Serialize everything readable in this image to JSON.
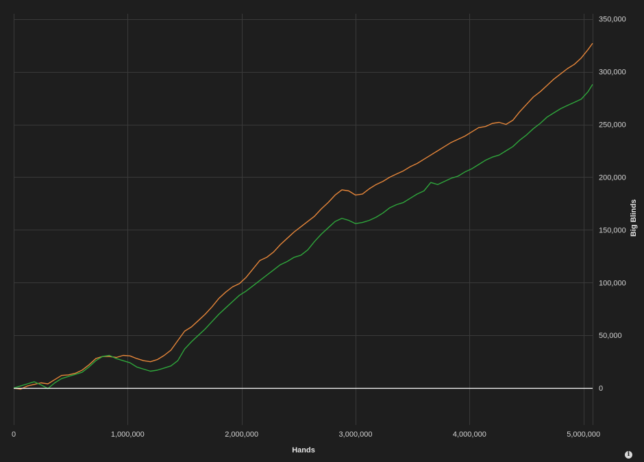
{
  "chart_data": {
    "type": "line",
    "xlabel": "Hands",
    "ylabel": "Big Blinds",
    "xlim": [
      0,
      5080000
    ],
    "ylim": [
      -35000,
      355000
    ],
    "x_ticks": [
      0,
      1000000,
      2000000,
      3000000,
      4000000,
      5000000
    ],
    "x_tick_labels": [
      "0",
      "1,000,000",
      "2,000,000",
      "3,000,000",
      "4,000,000",
      "5,000,000"
    ],
    "y_ticks": [
      0,
      50000,
      100000,
      150000,
      200000,
      250000,
      300000,
      350000
    ],
    "y_tick_labels": [
      "0",
      "50,000",
      "100,000",
      "150,000",
      "200,000",
      "250,000",
      "300,000",
      "350,000"
    ],
    "y_axis_side": "right",
    "grid": true,
    "zero_line_color": "#ffffff",
    "series": [
      {
        "color": "#e8873a",
        "x": [
          0,
          60000,
          120000,
          180000,
          240000,
          300000,
          360000,
          420000,
          480000,
          540000,
          600000,
          660000,
          720000,
          780000,
          840000,
          900000,
          960000,
          1020000,
          1080000,
          1140000,
          1200000,
          1260000,
          1320000,
          1380000,
          1440000,
          1500000,
          1560000,
          1620000,
          1680000,
          1740000,
          1800000,
          1860000,
          1920000,
          1980000,
          2040000,
          2100000,
          2160000,
          2220000,
          2280000,
          2340000,
          2400000,
          2460000,
          2520000,
          2580000,
          2640000,
          2700000,
          2760000,
          2820000,
          2880000,
          2940000,
          3000000,
          3060000,
          3120000,
          3180000,
          3240000,
          3300000,
          3360000,
          3420000,
          3480000,
          3540000,
          3600000,
          3660000,
          3720000,
          3780000,
          3840000,
          3900000,
          3960000,
          4020000,
          4080000,
          4140000,
          4200000,
          4260000,
          4320000,
          4380000,
          4440000,
          4500000,
          4560000,
          4620000,
          4680000,
          4740000,
          4800000,
          4860000,
          4920000,
          4980000,
          5040000,
          5080000
        ],
        "y": [
          0,
          -1000,
          2000,
          3500,
          5000,
          4000,
          8000,
          12000,
          12500,
          14000,
          17000,
          22000,
          28000,
          30000,
          30000,
          29000,
          31000,
          30500,
          28000,
          26000,
          25000,
          27000,
          31000,
          36000,
          45000,
          54000,
          58000,
          64000,
          70000,
          77000,
          85000,
          91000,
          96000,
          99000,
          105000,
          113000,
          121000,
          124000,
          129000,
          136000,
          142000,
          148000,
          153000,
          158000,
          163000,
          170000,
          176000,
          183000,
          188000,
          187000,
          183000,
          184000,
          189000,
          193000,
          196000,
          200000,
          203000,
          206000,
          210000,
          213000,
          217000,
          221000,
          225000,
          229000,
          233000,
          236000,
          239000,
          243000,
          247000,
          248000,
          251000,
          252000,
          250000,
          254000,
          262000,
          269000,
          276000,
          281000,
          287000,
          293000,
          298000,
          303000,
          307000,
          313000,
          321000,
          327000
        ]
      },
      {
        "color": "#2fa83c",
        "x": [
          0,
          60000,
          120000,
          180000,
          240000,
          300000,
          360000,
          420000,
          480000,
          540000,
          600000,
          660000,
          720000,
          780000,
          840000,
          900000,
          960000,
          1020000,
          1080000,
          1140000,
          1200000,
          1260000,
          1320000,
          1380000,
          1440000,
          1500000,
          1560000,
          1620000,
          1680000,
          1740000,
          1800000,
          1860000,
          1920000,
          1980000,
          2040000,
          2100000,
          2160000,
          2220000,
          2280000,
          2340000,
          2400000,
          2460000,
          2520000,
          2580000,
          2640000,
          2700000,
          2760000,
          2820000,
          2880000,
          2940000,
          3000000,
          3060000,
          3120000,
          3180000,
          3240000,
          3300000,
          3360000,
          3420000,
          3480000,
          3540000,
          3600000,
          3660000,
          3720000,
          3780000,
          3840000,
          3900000,
          3960000,
          4020000,
          4080000,
          4140000,
          4200000,
          4260000,
          4320000,
          4380000,
          4440000,
          4500000,
          4560000,
          4620000,
          4680000,
          4740000,
          4800000,
          4860000,
          4920000,
          4980000,
          5040000,
          5080000
        ],
        "y": [
          0,
          2000,
          4000,
          6000,
          3000,
          -500,
          5000,
          9000,
          11000,
          13000,
          15000,
          20000,
          26000,
          30000,
          31000,
          28000,
          26000,
          24000,
          20000,
          18000,
          16000,
          17000,
          19000,
          21000,
          26000,
          37000,
          44000,
          50000,
          56000,
          63000,
          70000,
          76000,
          82000,
          88000,
          92000,
          97000,
          102000,
          107000,
          112000,
          117000,
          120000,
          124000,
          126000,
          131000,
          139000,
          146000,
          152000,
          158000,
          161000,
          159000,
          156000,
          157000,
          159000,
          162000,
          166000,
          171000,
          174000,
          176000,
          180000,
          184000,
          187000,
          195000,
          193000,
          196000,
          199000,
          201000,
          205000,
          208000,
          212000,
          216000,
          219000,
          221000,
          225000,
          229000,
          235000,
          240000,
          246000,
          251000,
          257000,
          261000,
          265000,
          268000,
          271000,
          274000,
          281000,
          288000
        ]
      }
    ]
  },
  "icons": {
    "info": "info-icon"
  }
}
